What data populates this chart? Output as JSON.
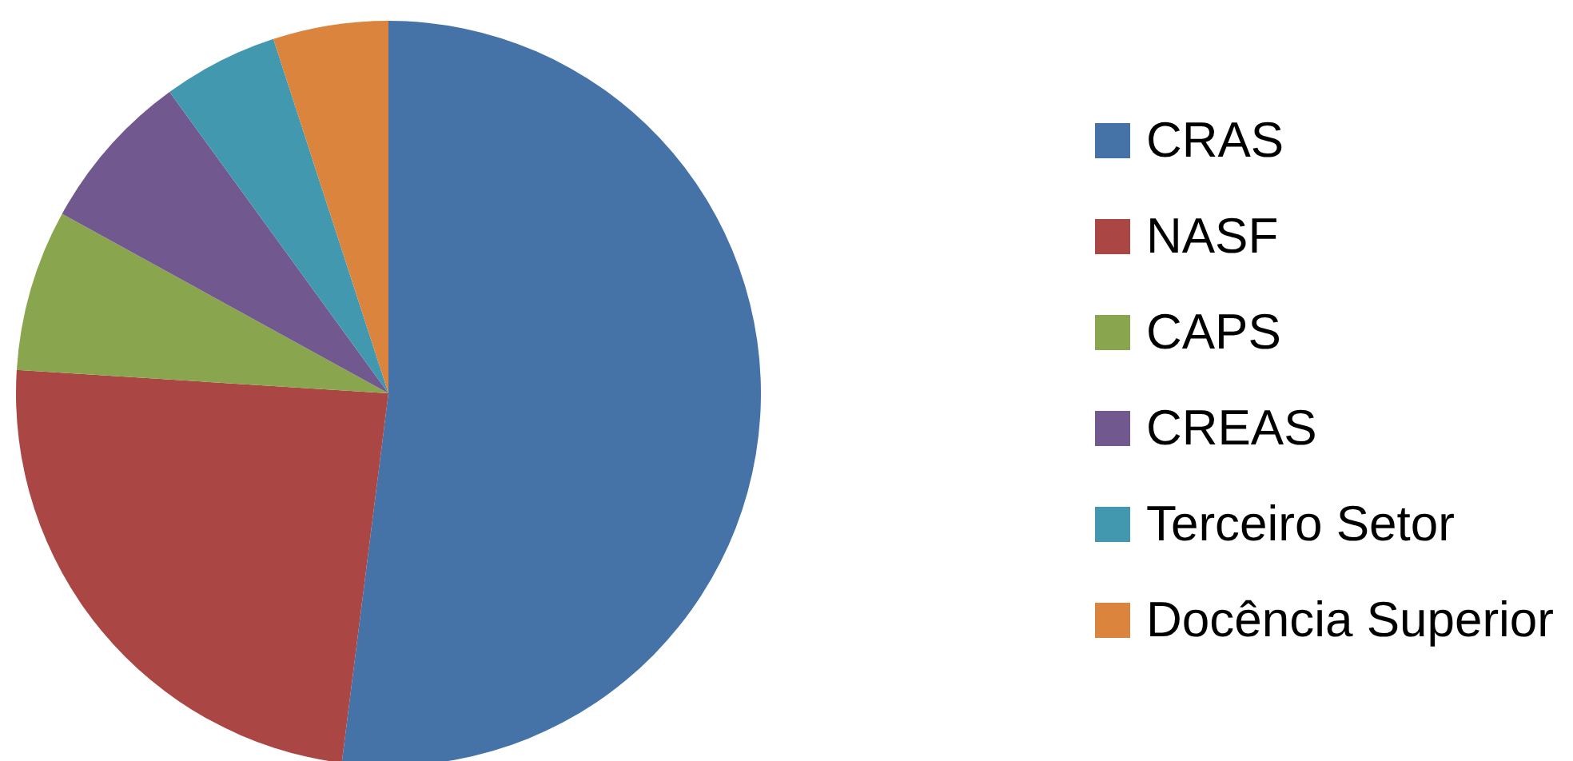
{
  "chart_data": {
    "type": "pie",
    "categories": [
      "CRAS",
      "NASF",
      "CAPS",
      "CREAS",
      "Terceiro Setor",
      "Docência Superior"
    ],
    "values": [
      52,
      24,
      7,
      7,
      5,
      5
    ],
    "colors": [
      "#4572a7",
      "#aa4643",
      "#89a54e",
      "#71588f",
      "#4198af",
      "#db843d"
    ],
    "legend": "right"
  }
}
